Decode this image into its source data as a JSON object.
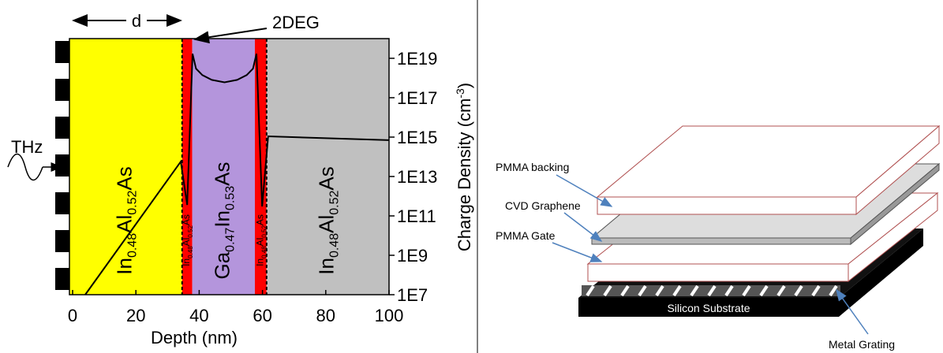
{
  "chart_data": {
    "type": "line",
    "x_label": "Depth (nm)",
    "y_label": [
      "Charge Density (cm",
      "-3",
      ")"
    ],
    "xlim": [
      -1,
      100
    ],
    "xticks": [
      0,
      20,
      40,
      60,
      80,
      100
    ],
    "ylim": [
      10000000.0,
      1e+20
    ],
    "log_y": true,
    "yticks": [
      {
        "value": 10000000.0,
        "label": "1E7"
      },
      {
        "value": 1000000000.0,
        "label": "1E9"
      },
      {
        "value": 100000000000.0,
        "label": "1E11"
      },
      {
        "value": 10000000000000.0,
        "label": "1E13"
      },
      {
        "value": 1000000000000000.0,
        "label": "1E15"
      },
      {
        "value": 1e+17,
        "label": "1E17"
      },
      {
        "value": 1e+19,
        "label": "1E19"
      }
    ],
    "layers": [
      {
        "name": [
          "In",
          "0.48",
          "Al",
          "0.52",
          "As"
        ],
        "color": "#ffff00",
        "x": [
          -1,
          34.6
        ]
      },
      {
        "name": [
          "In",
          "0.48",
          "Al",
          "0.52",
          "As"
        ],
        "color": "#ff0000",
        "x": [
          34.6,
          37.8
        ]
      },
      {
        "name": [
          "Ga",
          "0.47",
          "In",
          "0.53",
          "As"
        ],
        "color": "#b495dc",
        "x": [
          37.8,
          57.6
        ]
      },
      {
        "name": [
          "In",
          "0.48",
          "Al",
          "0.52",
          "As"
        ],
        "color": "#ff0000",
        "x": [
          57.6,
          61.3
        ]
      },
      {
        "name": [
          "In",
          "0.48",
          "Al",
          "0.52",
          "As"
        ],
        "color": "#c0c0c0",
        "x": [
          61.3,
          100
        ]
      }
    ],
    "x": [
      4,
      34.2,
      36.2,
      37.9,
      39,
      41,
      44,
      48,
      52,
      55,
      57,
      58.1,
      59.9,
      61.8,
      100
    ],
    "series": [
      {
        "color": "#000000",
        "values": [
          10000000.0,
          57000000000000.0,
          360000000000.0,
          1.7e+19,
          3e+18,
          1.4e+18,
          8e+17,
          6e+17,
          8e+17,
          1.4e+18,
          3e+18,
          1.7e+19,
          300000000000.0,
          1100000000000000.0,
          700000000000000.0
        ]
      }
    ],
    "annotations": {
      "d": "d",
      "two_deg": "2DEG",
      "thz": "THz"
    }
  },
  "diagram": {
    "labels": {
      "backing": "PMMA backing",
      "graphene": "CVD Graphene",
      "gate": "PMMA Gate",
      "substrate": "Silicon Substrate",
      "grating": "Metal Grating"
    }
  }
}
